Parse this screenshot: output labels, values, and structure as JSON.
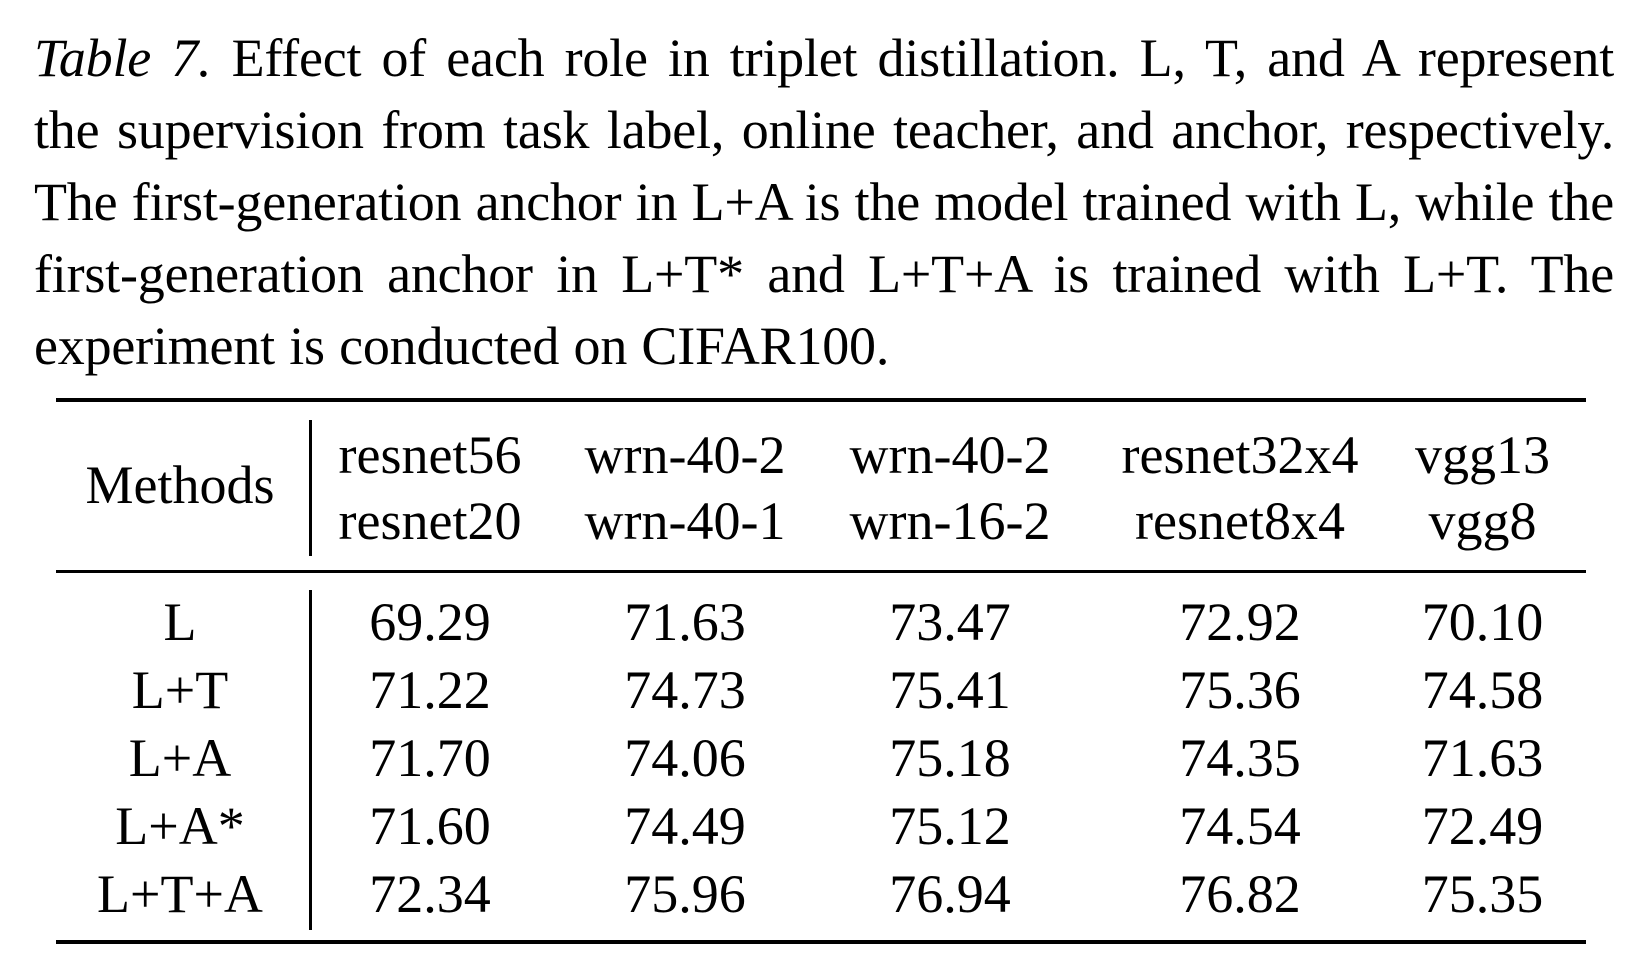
{
  "caption": {
    "label": "Table 7.",
    "text": " Effect of each role in triplet distillation. L, T, and A represent the supervision from task label, online teacher, and anchor, respectively. The first-generation anchor in L+A is the model trained with L, while the first-generation anchor in L+T* and L+T+A is trained with L+T. The experiment is conducted on CIFAR100."
  },
  "table": {
    "methods_header": "Methods",
    "columns": [
      {
        "teacher": "resnet56",
        "student": "resnet20"
      },
      {
        "teacher": "wrn-40-2",
        "student": "wrn-40-1"
      },
      {
        "teacher": "wrn-40-2",
        "student": "wrn-16-2"
      },
      {
        "teacher": "resnet32x4",
        "student": "resnet8x4"
      },
      {
        "teacher": "vgg13",
        "student": "vgg8"
      }
    ],
    "rows": [
      {
        "method": "L",
        "values": [
          "69.29",
          "71.63",
          "73.47",
          "72.92",
          "70.10"
        ]
      },
      {
        "method": "L+T",
        "values": [
          "71.22",
          "74.73",
          "75.41",
          "75.36",
          "74.58"
        ]
      },
      {
        "method": "L+A",
        "values": [
          "71.70",
          "74.06",
          "75.18",
          "74.35",
          "71.63"
        ]
      },
      {
        "method": "L+A*",
        "values": [
          "71.60",
          "74.49",
          "75.12",
          "74.54",
          "72.49"
        ]
      },
      {
        "method": "L+T+A",
        "values": [
          "72.34",
          "75.96",
          "76.94",
          "76.82",
          "75.35"
        ]
      }
    ]
  }
}
